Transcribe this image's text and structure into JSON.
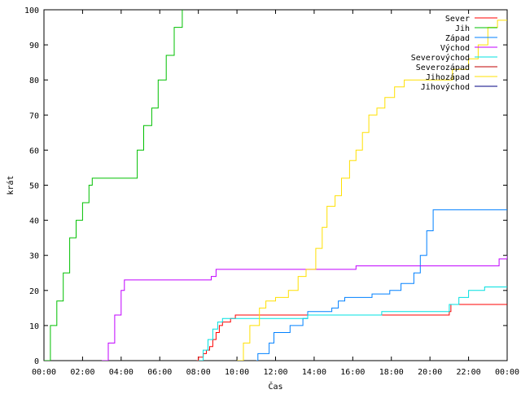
{
  "chart_data": {
    "type": "line",
    "title": "",
    "xlabel": "Čas",
    "ylabel": "krát",
    "xlim": [
      "00:00",
      "24:00"
    ],
    "ylim": [
      0,
      100
    ],
    "x_ticks": [
      "00:00",
      "02:00",
      "04:00",
      "06:00",
      "08:00",
      "10:00",
      "12:00",
      "14:00",
      "16:00",
      "18:00",
      "20:00",
      "22:00",
      "00:00"
    ],
    "y_ticks": [
      0,
      10,
      20,
      30,
      40,
      50,
      60,
      70,
      80,
      90,
      100
    ],
    "grid": false,
    "legend_position": "top-right",
    "step": true,
    "series": [
      {
        "name": "Sever",
        "color": "#ff0000",
        "points": [
          [
            "07:55",
            0
          ],
          [
            "08:00",
            1
          ],
          [
            "08:15",
            2
          ],
          [
            "08:25",
            3
          ],
          [
            "08:35",
            4
          ],
          [
            "08:45",
            6
          ],
          [
            "08:55",
            8
          ],
          [
            "09:05",
            10
          ],
          [
            "09:15",
            11
          ],
          [
            "09:40",
            12
          ],
          [
            "09:55",
            13
          ],
          [
            "21:00",
            14
          ],
          [
            "21:05",
            16
          ],
          [
            "24:00",
            16
          ]
        ]
      },
      {
        "name": "Jih",
        "color": "#00c000",
        "points": [
          [
            "00:00",
            0
          ],
          [
            "00:20",
            10
          ],
          [
            "00:40",
            17
          ],
          [
            "01:00",
            25
          ],
          [
            "01:20",
            35
          ],
          [
            "01:40",
            40
          ],
          [
            "02:00",
            45
          ],
          [
            "02:20",
            50
          ],
          [
            "02:30",
            52
          ],
          [
            "04:30",
            52
          ],
          [
            "04:50",
            60
          ],
          [
            "05:10",
            67
          ],
          [
            "05:35",
            72
          ],
          [
            "05:55",
            80
          ],
          [
            "06:20",
            87
          ],
          [
            "06:45",
            95
          ],
          [
            "07:10",
            100
          ]
        ]
      },
      {
        "name": "Západ",
        "color": "#0080ff",
        "points": [
          [
            "11:00",
            0
          ],
          [
            "11:05",
            2
          ],
          [
            "11:40",
            5
          ],
          [
            "11:55",
            8
          ],
          [
            "12:45",
            10
          ],
          [
            "13:25",
            12
          ],
          [
            "13:40",
            14
          ],
          [
            "14:55",
            15
          ],
          [
            "15:15",
            17
          ],
          [
            "15:35",
            18
          ],
          [
            "17:00",
            19
          ],
          [
            "17:55",
            20
          ],
          [
            "18:30",
            22
          ],
          [
            "19:10",
            25
          ],
          [
            "19:30",
            30
          ],
          [
            "19:50",
            37
          ],
          [
            "20:10",
            43
          ],
          [
            "24:00",
            43
          ]
        ]
      },
      {
        "name": "Východ",
        "color": "#c000ff",
        "points": [
          [
            "03:00",
            0
          ],
          [
            "03:20",
            5
          ],
          [
            "03:40",
            13
          ],
          [
            "04:00",
            20
          ],
          [
            "04:10",
            23
          ],
          [
            "08:40",
            24
          ],
          [
            "08:55",
            26
          ],
          [
            "16:10",
            27
          ],
          [
            "23:35",
            29
          ],
          [
            "24:00",
            30
          ]
        ]
      },
      {
        "name": "Severovýchod",
        "color": "#00e0e0",
        "points": [
          [
            "08:00",
            0
          ],
          [
            "08:15",
            3
          ],
          [
            "08:30",
            6
          ],
          [
            "08:45",
            9
          ],
          [
            "09:00",
            11
          ],
          [
            "09:15",
            12
          ],
          [
            "13:40",
            13
          ],
          [
            "17:30",
            14
          ],
          [
            "21:00",
            16
          ],
          [
            "21:30",
            18
          ],
          [
            "22:00",
            20
          ],
          [
            "22:50",
            21
          ],
          [
            "24:00",
            21
          ]
        ]
      },
      {
        "name": "Severozápad",
        "color": "#c00000",
        "points": [
          [
            "24:00",
            0
          ]
        ]
      },
      {
        "name": "Jihozápad",
        "color": "#ffe000",
        "points": [
          [
            "10:00",
            0
          ],
          [
            "10:20",
            5
          ],
          [
            "10:40",
            10
          ],
          [
            "11:10",
            15
          ],
          [
            "11:30",
            17
          ],
          [
            "12:00",
            18
          ],
          [
            "12:40",
            20
          ],
          [
            "13:10",
            24
          ],
          [
            "13:35",
            26
          ],
          [
            "14:05",
            32
          ],
          [
            "14:25",
            38
          ],
          [
            "14:40",
            44
          ],
          [
            "15:05",
            47
          ],
          [
            "15:25",
            52
          ],
          [
            "15:50",
            57
          ],
          [
            "16:10",
            60
          ],
          [
            "16:30",
            65
          ],
          [
            "16:50",
            70
          ],
          [
            "17:15",
            72
          ],
          [
            "17:40",
            75
          ],
          [
            "18:10",
            78
          ],
          [
            "18:40",
            80
          ],
          [
            "21:10",
            83
          ],
          [
            "22:00",
            86
          ],
          [
            "22:30",
            90
          ],
          [
            "23:00",
            95
          ],
          [
            "23:30",
            97
          ],
          [
            "24:00",
            97
          ]
        ]
      },
      {
        "name": "Jihovýchod",
        "color": "#000080",
        "points": [
          [
            "24:00",
            0
          ]
        ]
      }
    ]
  }
}
